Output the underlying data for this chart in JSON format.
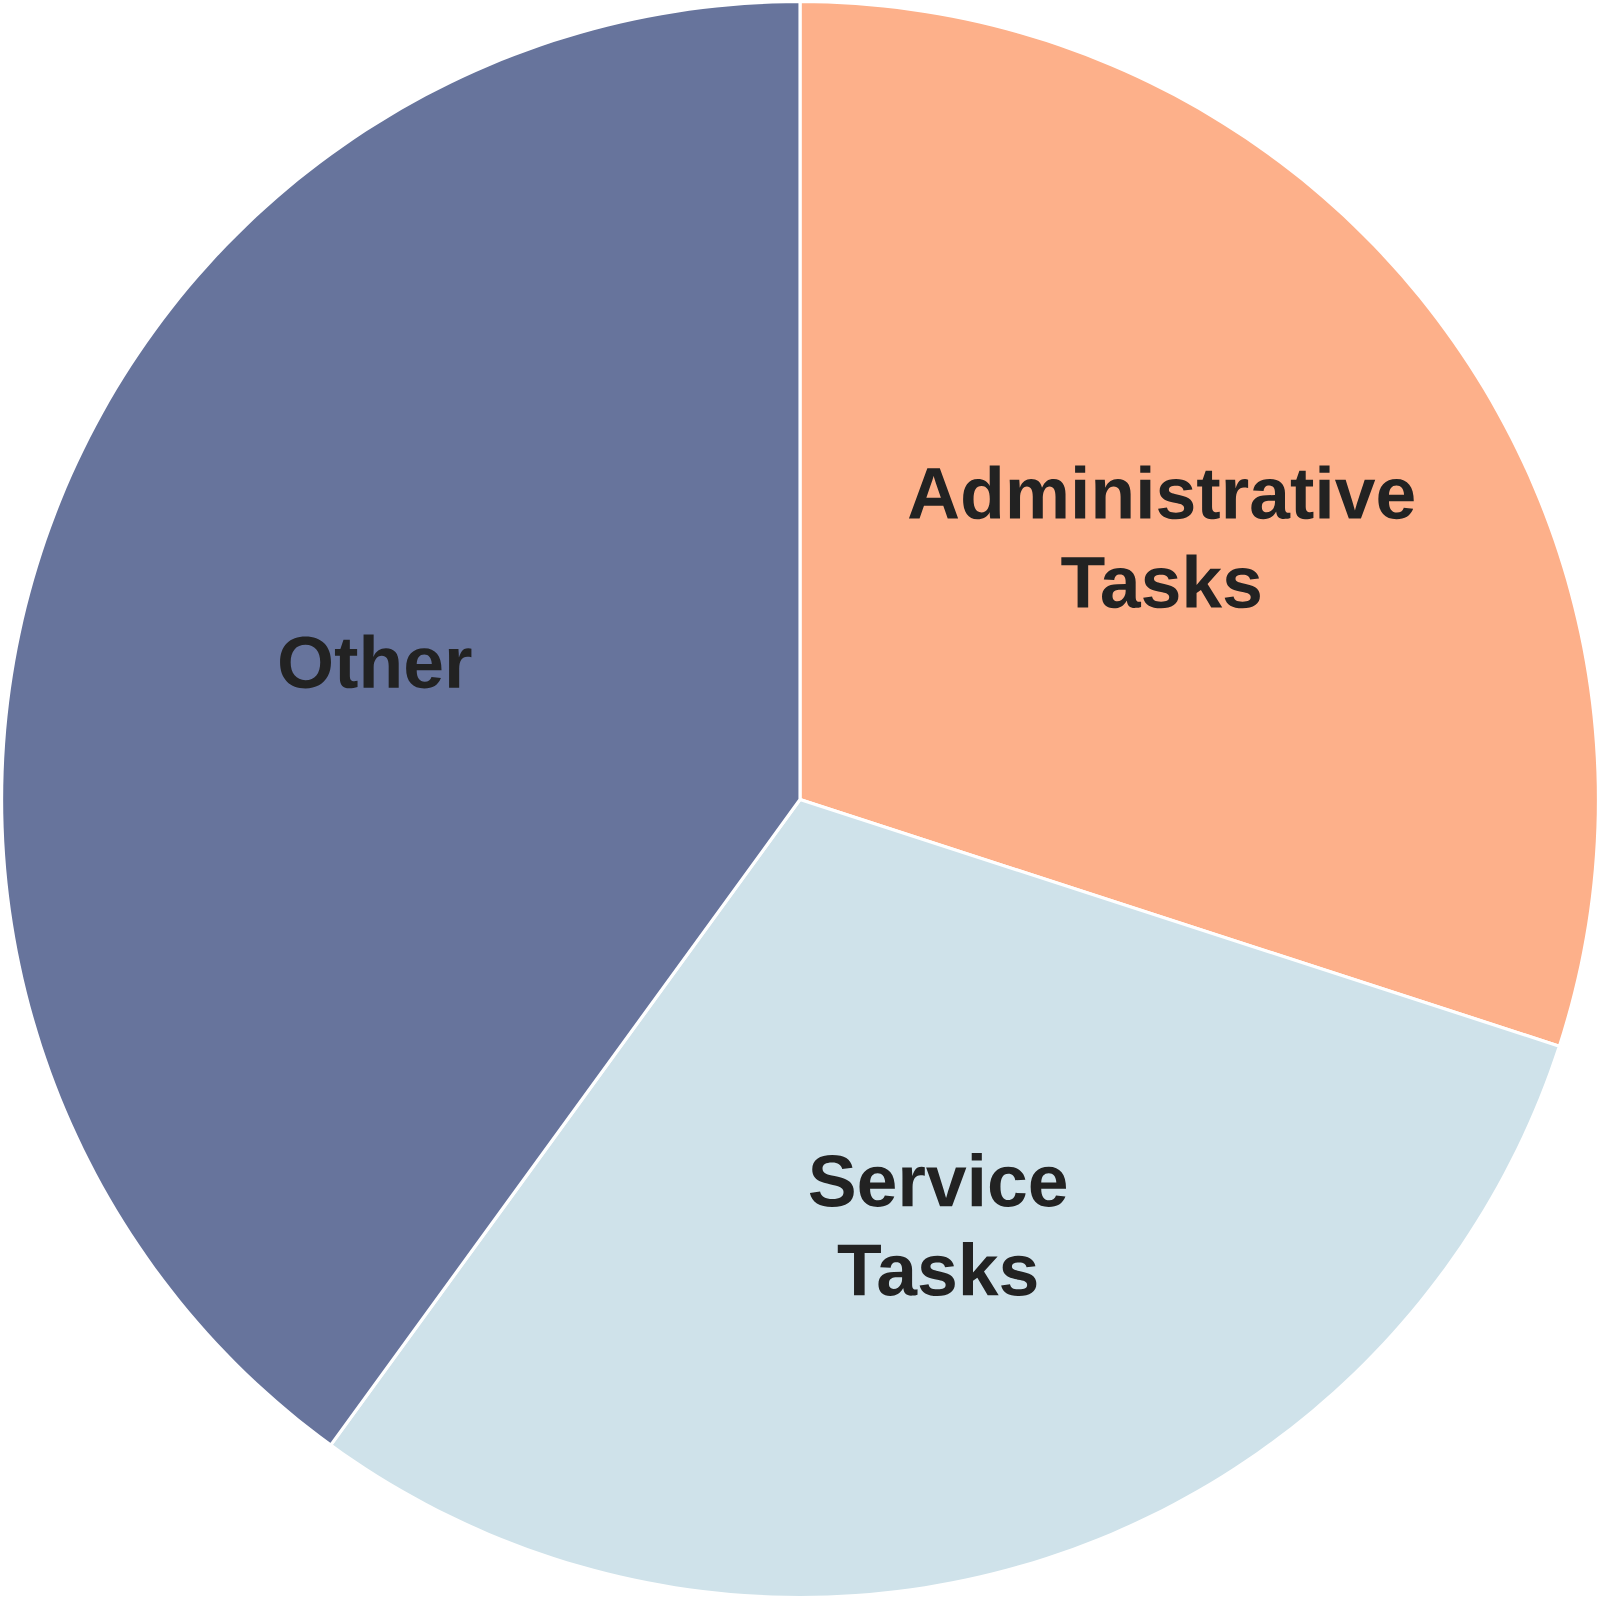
{
  "chart_data": {
    "type": "pie",
    "categories": [
      "Administrative Tasks",
      "Service Tasks",
      "Other"
    ],
    "values": [
      30,
      30,
      40
    ],
    "colors": [
      "#fdb08a",
      "#cfe2ea",
      "#67749c"
    ]
  }
}
